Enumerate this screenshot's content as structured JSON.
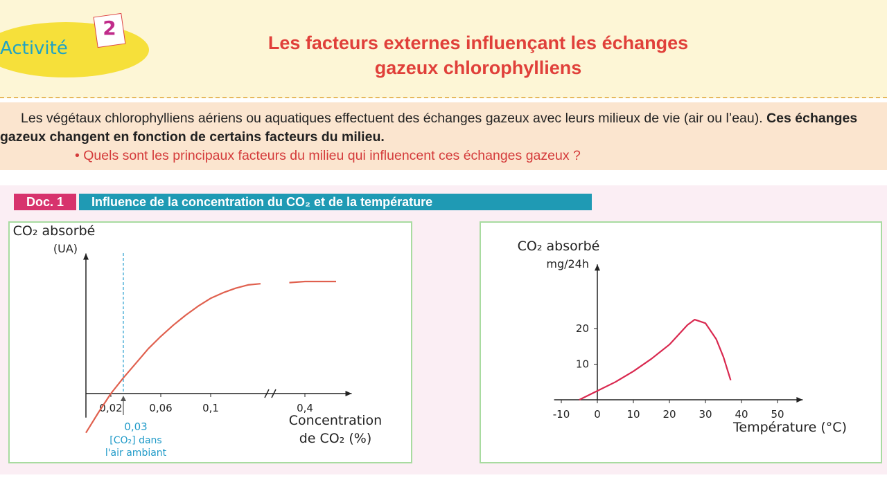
{
  "header": {
    "activity": "Activité",
    "number": "2",
    "title": [
      "Les facteurs externes influençant les échanges",
      "gazeux chlorophylliens"
    ]
  },
  "intro": {
    "text": "Les végétaux chlorophylliens aériens ou aquatiques effectuent des échanges gazeux avec leurs milieux de vie (air ou l’eau).",
    "bold": "Ces échanges gazeux changent en fonction de certains facteurs du milieu.",
    "question": "Quels sont les principaux facteurs du milieu qui influencent ces échanges gazeux ?"
  },
  "doc": {
    "label": "Doc. 1",
    "title": "Influence de la concentration du CO₂ et de la température"
  },
  "chart_data": [
    {
      "type": "line",
      "ylabel": [
        "CO₂ absorbé",
        "(UA)"
      ],
      "xlabel": [
        "Concentration",
        "de CO₂ (%)"
      ],
      "x": [
        0,
        0.01,
        0.02,
        0.03,
        0.04,
        0.05,
        0.06,
        0.07,
        0.08,
        0.09,
        0.1,
        0.11,
        0.12,
        0.13,
        0.14,
        0.26,
        0.39,
        0.4,
        0.42
      ],
      "series": [
        {
          "color": "#e0604e",
          "values": [
            -3.5,
            -1.7,
            0,
            1.4,
            2.7,
            4,
            5.1,
            6.1,
            7,
            7.8,
            8.5,
            9,
            9.4,
            9.7,
            9.8,
            null,
            9.9,
            10,
            10
          ]
        }
      ],
      "xlim": [
        0,
        0.43
      ],
      "ylim": [
        -4,
        12.5
      ],
      "x_break": [
        0.145,
        0.38
      ],
      "xticks": [
        {
          "value": 0.02,
          "label": "0,02"
        },
        {
          "value": 0.06,
          "label": "0,06"
        },
        {
          "value": 0.1,
          "label": "0,1"
        },
        {
          "value": 0.4,
          "label": "0,4"
        }
      ],
      "marker": {
        "value": 0.03,
        "label": "0,03"
      },
      "marker_text": [
        "[CO₂] dans",
        "l'air ambiant"
      ]
    },
    {
      "type": "line",
      "ylabel": [
        "CO₂ absorbé",
        "mg/24h"
      ],
      "xlabel": [
        "Température (°C)"
      ],
      "x": [
        -5,
        0,
        5,
        10,
        15,
        20,
        25,
        27,
        30,
        33,
        35,
        37
      ],
      "series": [
        {
          "color": "#d9284f",
          "values": [
            0,
            2.5,
            5,
            8,
            11.5,
            15.5,
            21,
            22.5,
            21.5,
            17,
            12,
            5.5
          ]
        }
      ],
      "xlim": [
        -12,
        57
      ],
      "ylim": [
        0,
        38
      ],
      "xticks": [
        -10,
        0,
        10,
        20,
        30,
        40,
        50
      ],
      "yticks": [
        10,
        20
      ]
    }
  ]
}
